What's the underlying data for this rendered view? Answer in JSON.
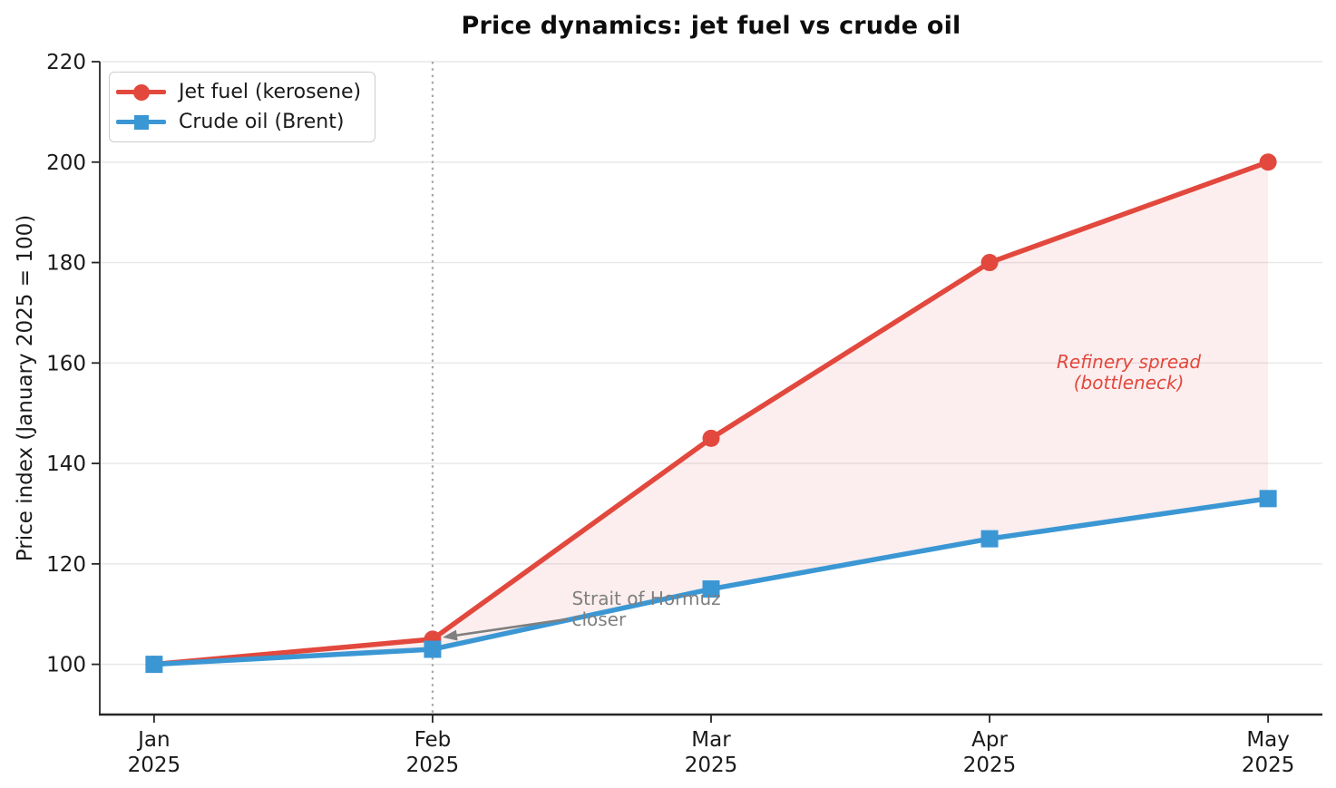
{
  "chart_data": {
    "type": "line",
    "title": "Price dynamics: jet fuel vs crude oil",
    "ylabel": "Price index (January 2025 = 100)",
    "xlabel": "",
    "categories": [
      "Jan 2025",
      "Feb 2025",
      "Mar 2025",
      "Apr 2025",
      "May 2025"
    ],
    "series": [
      {
        "name": "Jet fuel (kerosene)",
        "color": "#e2483d",
        "marker": "circle",
        "values": [
          100,
          105,
          145,
          180,
          200
        ]
      },
      {
        "name": "Crude oil (Brent)",
        "color": "#3b97d4",
        "marker": "square",
        "values": [
          100,
          103,
          115,
          125,
          133
        ]
      }
    ],
    "fill_between": {
      "between": [
        "Jet fuel (kerosene)",
        "Crude oil (Brent)"
      ],
      "color": "#e2483d",
      "opacity": 0.09
    },
    "yticks": [
      100,
      120,
      140,
      160,
      180,
      200,
      220
    ],
    "ylim": [
      90,
      220
    ],
    "x_margin": 0.195,
    "grid": "horizontal",
    "legend_position": "upper-left",
    "event_line": {
      "x_index": 1,
      "style": "dotted",
      "color": "#a6a6a6"
    },
    "annotations": [
      {
        "id": "hormuz",
        "text": "Strait of Hormuz\ncloser",
        "color": "#7f7f7f",
        "italic": false,
        "arrow": true,
        "x_index": 1,
        "y_value": 105,
        "text_x_index": 1.5,
        "text_y_value": 111
      },
      {
        "id": "refinery",
        "text": "Refinery spread\n(bottleneck)",
        "color": "#e2483d",
        "italic": true,
        "arrow": false,
        "text_x_index": 3.5,
        "text_y_value": 158
      }
    ],
    "style": {
      "grid_color": "#e7e7e7",
      "spine_color": "#262626",
      "tick_label_color": "#1a1a1a",
      "line_width": 5.5
    }
  }
}
